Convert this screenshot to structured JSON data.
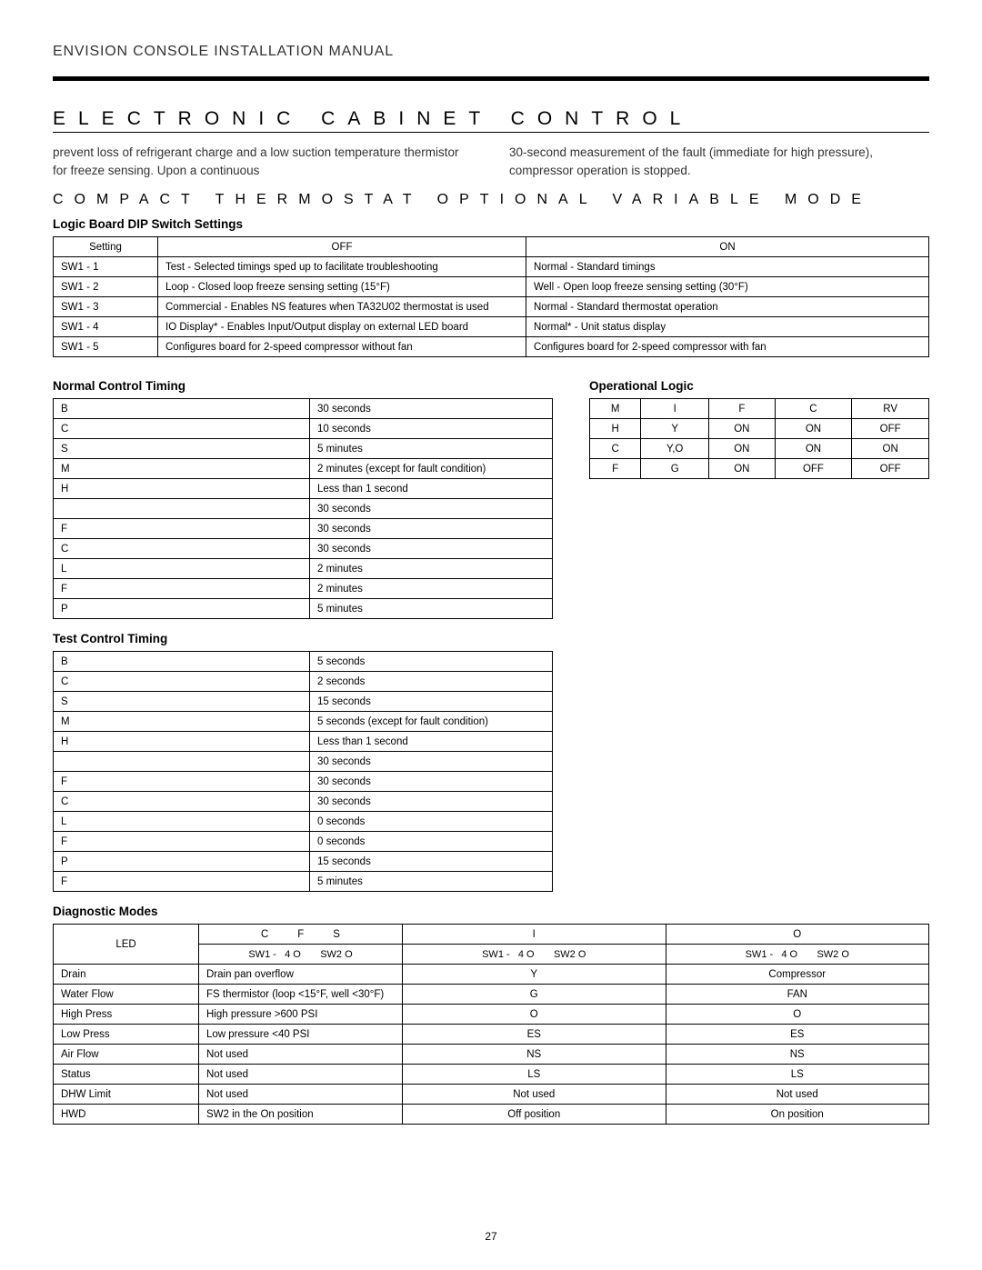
{
  "header": {
    "title": "ENVISION CONSOLE INSTALLATION MANUAL"
  },
  "main_heading": "Electronic Cabinet Control",
  "intro": {
    "left": "prevent loss of refrigerant charge and a low suction temperature thermistor for freeze sensing. Upon a continuous",
    "right": "30-second measurement of the fault (immediate for high pressure), compressor operation is stopped."
  },
  "subheading": "Compact Thermostat Optional Variable Mode",
  "subhead_dip": "Logic Board DIP Switch Settings",
  "dip": {
    "headers": [
      "Setting",
      "OFF",
      "ON"
    ],
    "rows": [
      [
        "SW1 - 1",
        "Test - Selected timings sped up to facilitate troubleshooting",
        "Normal - Standard timings"
      ],
      [
        "SW1 - 2",
        "Loop - Closed loop freeze sensing setting (15°F)",
        "Well - Open loop freeze sensing setting (30°F)"
      ],
      [
        "SW1 - 3",
        "Commercial - Enables NS features when TA32U02 thermostat is used",
        "Normal - Standard thermostat operation"
      ],
      [
        "SW1 - 4",
        "IO Display* - Enables Input/Output display on external LED board",
        "Normal* - Unit status display"
      ],
      [
        "SW1 - 5",
        "Configures board for 2-speed compressor without fan",
        "Configures board for 2-speed compressor with fan"
      ]
    ]
  },
  "subhead_normal": "Normal Control Timing",
  "normal_timing": [
    [
      "B",
      "30 seconds"
    ],
    [
      "C",
      "10 seconds"
    ],
    [
      "S",
      "5 minutes"
    ],
    [
      "M",
      "2 minutes (except for fault condition)"
    ],
    [
      "H",
      "Less than 1 second"
    ],
    [
      "",
      "30 seconds"
    ],
    [
      "F",
      "30 seconds"
    ],
    [
      "C",
      "30 seconds"
    ],
    [
      "L",
      "2 minutes"
    ],
    [
      "F",
      "2 minutes"
    ],
    [
      "P",
      "5 minutes"
    ]
  ],
  "subhead_op": "Operational Logic",
  "op_logic": {
    "headers": [
      "M",
      "I",
      "F",
      "C",
      "RV"
    ],
    "rows": [
      [
        "H",
        "Y",
        "ON",
        "ON",
        "OFF"
      ],
      [
        "C",
        "Y,O",
        "ON",
        "ON",
        "ON"
      ],
      [
        "F",
        "G",
        "ON",
        "OFF",
        "OFF"
      ]
    ]
  },
  "subhead_test": "Test Control Timing",
  "test_timing": [
    [
      "B",
      "5 seconds"
    ],
    [
      "C",
      "2 seconds"
    ],
    [
      "S",
      "15 seconds"
    ],
    [
      "M",
      "5 seconds (except for fault condition)"
    ],
    [
      "H",
      "Less than 1 second"
    ],
    [
      "",
      "30 seconds"
    ],
    [
      "F",
      "30 seconds"
    ],
    [
      "C",
      "30 seconds"
    ],
    [
      "L",
      "0 seconds"
    ],
    [
      "F",
      "0 seconds"
    ],
    [
      "P",
      "15 seconds"
    ],
    [
      "F",
      "5 minutes"
    ]
  ],
  "subhead_diag": "Diagnostic Modes",
  "diag": {
    "h1": [
      "LED",
      "C          F          S",
      "I",
      "O"
    ],
    "h2": [
      "SW1 -   4 O       SW2 O",
      "SW1 -   4 O       SW2 O",
      "SW1 -   4 O       SW2 O"
    ],
    "rows": [
      [
        "Drain",
        "Drain pan overflow",
        "Y",
        "Compressor"
      ],
      [
        "Water Flow",
        "FS thermistor (loop <15°F, well <30°F)",
        "G",
        "FAN"
      ],
      [
        "High Press",
        "High pressure >600 PSI",
        "O",
        "O"
      ],
      [
        "Low Press",
        "Low pressure <40 PSI",
        "ES",
        "ES"
      ],
      [
        "Air Flow",
        "Not used",
        "NS",
        "NS"
      ],
      [
        "Status",
        "Not used",
        "LS",
        "LS"
      ],
      [
        "DHW Limit",
        "Not used",
        "Not used",
        "Not used"
      ],
      [
        "HWD",
        "SW2 in the On position",
        "Off position",
        "On position"
      ]
    ]
  },
  "page_number": "27"
}
